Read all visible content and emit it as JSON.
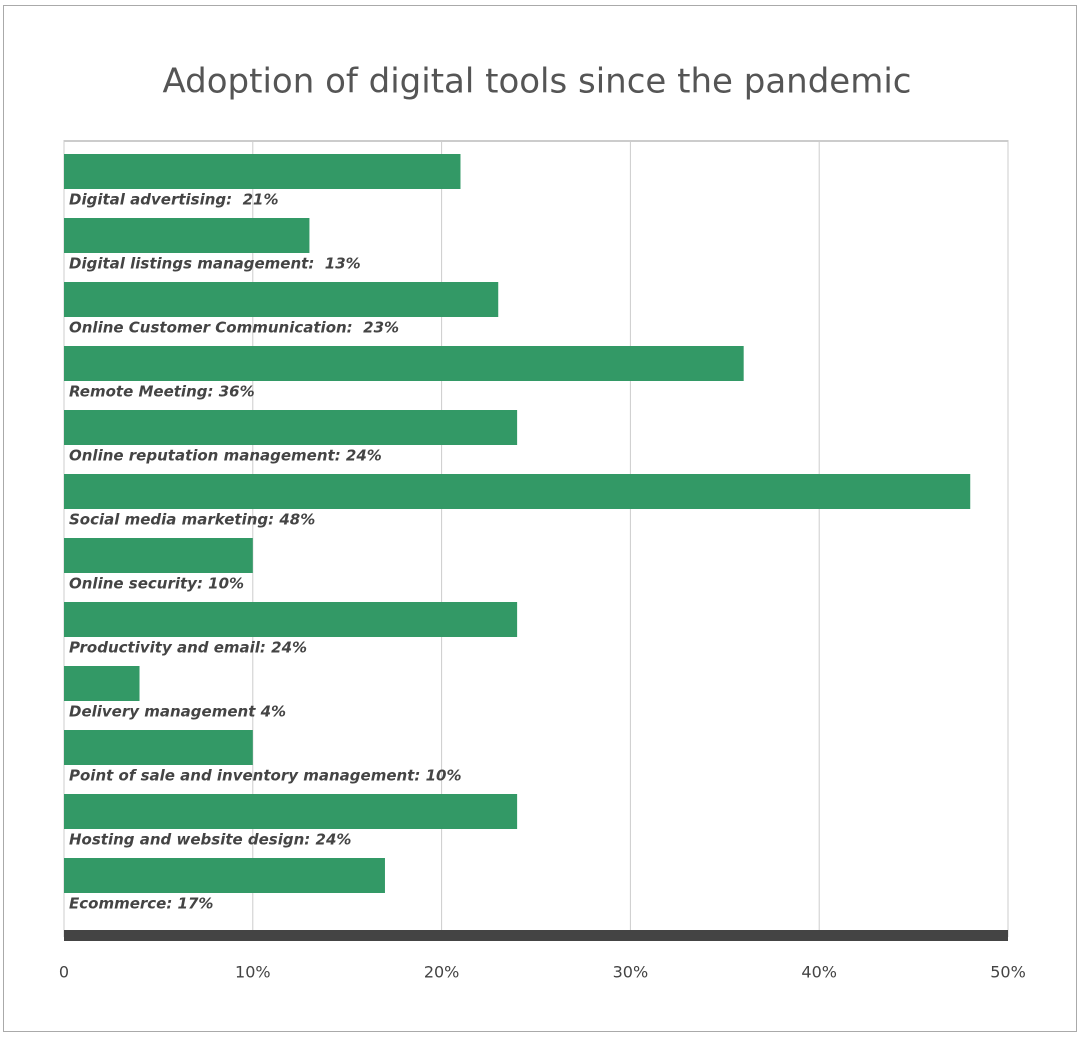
{
  "chart_data": {
    "type": "bar",
    "orientation": "horizontal",
    "title": "Adoption of digital tools since the pandemic",
    "categories": [
      "Digital advertising:  21%",
      "Digital listings management:  13%",
      "Online Customer Communication:  23%",
      "Remote Meeting: 36%",
      "Online reputation management: 24%",
      "Social media marketing: 48%",
      "Online security: 10%",
      "Productivity and email: 24%",
      "Delivery management 4%",
      "Point of sale and inventory management: 10%",
      "Hosting and website design: 24%",
      "Ecommerce: 17%"
    ],
    "values": [
      21,
      13,
      23,
      36,
      24,
      48,
      10,
      24,
      4,
      10,
      24,
      17
    ],
    "color": "#339966",
    "xlim": [
      0,
      50
    ],
    "xticks": [
      0,
      {
        "value": 10,
        "label": "10%"
      },
      {
        "value": 20,
        "label": "20%"
      },
      {
        "value": 30,
        "label": "30%"
      },
      {
        "value": 40,
        "label": "40%"
      },
      {
        "value": 50,
        "label": "50%"
      }
    ],
    "grid": true
  }
}
